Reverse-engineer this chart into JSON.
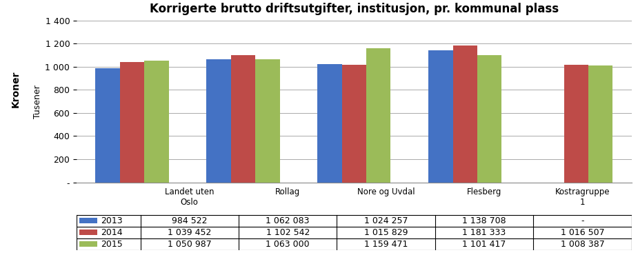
{
  "title": "Korrigerte brutto driftsutgifter, institusjon, pr. kommunal plass",
  "ylabel_outer": "Kroner",
  "ylabel_inner": "Tusener",
  "categories": [
    "Landet uten\nOslo",
    "Rollag",
    "Nore og Uvdal",
    "Flesberg",
    "Kostragruppe\n1"
  ],
  "series": [
    {
      "label": "2013",
      "color": "#4472C4",
      "values": [
        984522,
        1062083,
        1024257,
        1138708,
        null
      ]
    },
    {
      "label": "2014",
      "color": "#BE4B48",
      "values": [
        1039452,
        1102542,
        1015829,
        1181333,
        1016507
      ]
    },
    {
      "label": "2015",
      "color": "#9BBB59",
      "values": [
        1050987,
        1063000,
        1159471,
        1101417,
        1008387
      ]
    }
  ],
  "ylim_max": 1400,
  "yticks": [
    0,
    200,
    400,
    600,
    800,
    1000,
    1200,
    1400
  ],
  "ytick_labels": [
    "-",
    "200",
    "400",
    "600",
    "800",
    "1 000",
    "1 200",
    "1 400"
  ],
  "table_rows": [
    [
      "2013",
      "984 522",
      "1 062 083",
      "1 024 257",
      "1 138 708",
      "-"
    ],
    [
      "2014",
      "1 039 452",
      "1 102 542",
      "1 015 829",
      "1 181 333",
      "1 016 507"
    ],
    [
      "2015",
      "1 050 987",
      "1 063 000",
      "1 159 471",
      "1 101 417",
      "1 008 387"
    ]
  ],
  "table_legend_colors": [
    "#4472C4",
    "#BE4B48",
    "#9BBB59"
  ],
  "bar_width": 0.22,
  "background_color": "#FFFFFF",
  "grid_color": "#AAAAAA",
  "scale_divisor": 1000
}
